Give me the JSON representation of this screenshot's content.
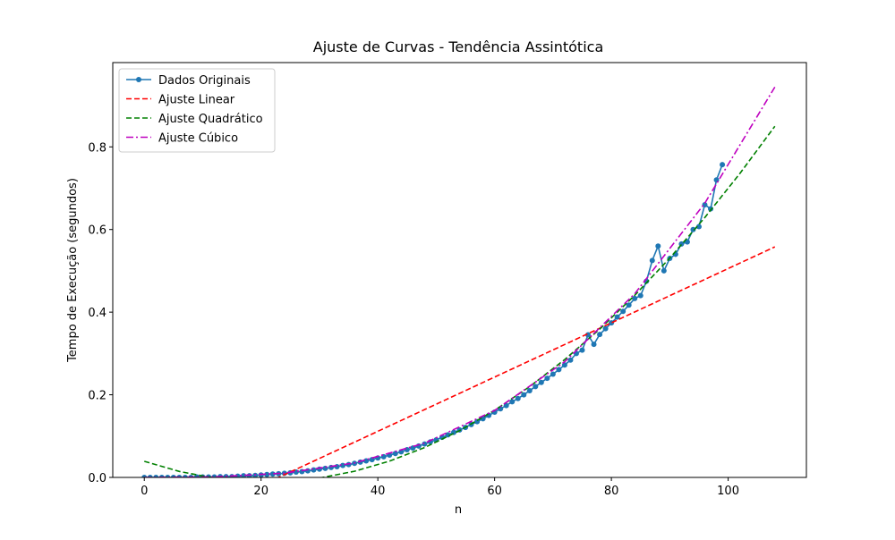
{
  "chart_data": {
    "type": "line",
    "title": "Ajuste de Curvas - Tendência Assintótica",
    "xlabel": "n",
    "ylabel": "Tempo de Execução (segundos)",
    "xlim": [
      -5.4,
      113.4
    ],
    "ylim": [
      0,
      1.004
    ],
    "xticks": [
      0,
      20,
      40,
      60,
      80,
      100
    ],
    "yticks": [
      {
        "value": 0,
        "label": "0.0"
      },
      0.2,
      0.4,
      0.6,
      0.8
    ],
    "legend": "upper left",
    "series": [
      {
        "name": "Dados Originais",
        "color": "#1f77b4",
        "linestyle": "solid",
        "marker": "o",
        "x": [
          0,
          1,
          2,
          3,
          4,
          5,
          6,
          7,
          8,
          9,
          10,
          11,
          12,
          13,
          14,
          15,
          16,
          17,
          18,
          19,
          20,
          21,
          22,
          23,
          24,
          25,
          26,
          27,
          28,
          29,
          30,
          31,
          32,
          33,
          34,
          35,
          36,
          37,
          38,
          39,
          40,
          41,
          42,
          43,
          44,
          45,
          46,
          47,
          48,
          49,
          50,
          51,
          52,
          53,
          54,
          55,
          56,
          57,
          58,
          59,
          60,
          61,
          62,
          63,
          64,
          65,
          66,
          67,
          68,
          69,
          70,
          71,
          72,
          73,
          74,
          75,
          76,
          77,
          78,
          79,
          80,
          81,
          82,
          83,
          84,
          85,
          86,
          87,
          88,
          89,
          90,
          91,
          92,
          93,
          94,
          95,
          96,
          97,
          98,
          99
        ],
        "values": [
          0,
          0,
          0,
          0,
          0,
          0,
          0,
          0,
          0,
          0.001,
          0.001,
          0.001,
          0.001,
          0.002,
          0.002,
          0.002,
          0.003,
          0.004,
          0.004,
          0.005,
          0.006,
          0.007,
          0.008,
          0.009,
          0.01,
          0.011,
          0.013,
          0.014,
          0.016,
          0.018,
          0.02,
          0.022,
          0.024,
          0.026,
          0.029,
          0.031,
          0.034,
          0.037,
          0.04,
          0.043,
          0.047,
          0.05,
          0.054,
          0.058,
          0.062,
          0.067,
          0.071,
          0.076,
          0.081,
          0.086,
          0.091,
          0.097,
          0.103,
          0.109,
          0.115,
          0.121,
          0.128,
          0.135,
          0.142,
          0.15,
          0.158,
          0.166,
          0.174,
          0.183,
          0.191,
          0.2,
          0.21,
          0.22,
          0.23,
          0.24,
          0.25,
          0.261,
          0.272,
          0.284,
          0.3,
          0.308,
          0.345,
          0.322,
          0.346,
          0.36,
          0.374,
          0.388,
          0.402,
          0.417,
          0.433,
          0.44,
          0.475,
          0.525,
          0.56,
          0.5,
          0.53,
          0.54,
          0.565,
          0.57,
          0.6,
          0.607,
          0.66,
          0.65,
          0.72,
          0.757
        ]
      },
      {
        "name": "Ajuste Linear",
        "color": "#ff0000",
        "linestyle": "dashed",
        "x": [
          0,
          108
        ],
        "values": [
          -0.151,
          0.558
        ]
      },
      {
        "name": "Ajuste Quadrático",
        "color": "#008000",
        "linestyle": "dashed",
        "x": [
          0,
          6,
          12,
          18,
          24,
          30,
          36,
          42,
          48,
          54,
          60,
          66,
          72,
          78,
          84,
          90,
          96,
          102,
          108
        ],
        "values": [
          0.039,
          0.0145,
          -0.0018,
          -0.0099,
          -0.0098,
          -0.0016,
          0.0149,
          0.0395,
          0.0723,
          0.1132,
          0.1624,
          0.2197,
          0.2852,
          0.3589,
          0.4407,
          0.5308,
          0.629,
          0.7354,
          0.8499
        ]
      },
      {
        "name": "Ajuste Cúbico",
        "color": "#bf00bf",
        "linestyle": "dashdot",
        "x": [
          0,
          12,
          24,
          36,
          48,
          60,
          72,
          84,
          96,
          108
        ],
        "values": [
          0,
          0.0013,
          0.0104,
          0.035,
          0.0829,
          0.162,
          0.2799,
          0.4445,
          0.6636,
          0.9448
        ]
      }
    ]
  }
}
